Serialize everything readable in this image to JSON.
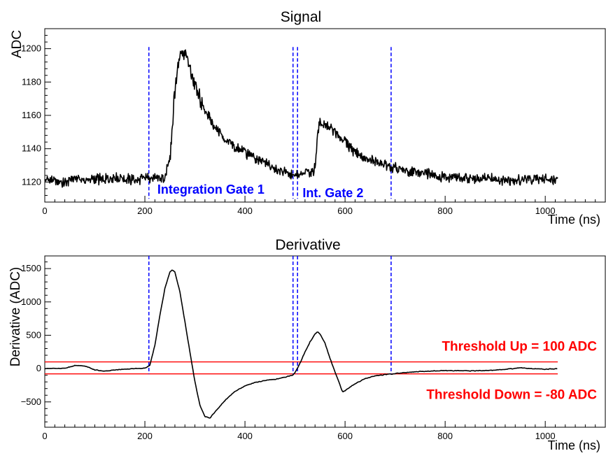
{
  "chart_data": [
    {
      "type": "line",
      "title": "Signal",
      "xlabel": "Time (ns)",
      "ylabel": "ADC",
      "xlim": [
        0,
        1120
      ],
      "ylim": [
        1108,
        1212
      ],
      "x_ticks": [
        0,
        200,
        400,
        600,
        800,
        1000
      ],
      "y_ticks": [
        1120,
        1140,
        1160,
        1180,
        1200
      ],
      "gate_lines_x": [
        208,
        496,
        505,
        692
      ],
      "annotations": [
        {
          "text": "Integration Gate 1",
          "x": 225,
          "y": 1113,
          "color": "#0000ff"
        },
        {
          "text": "Int. Gate 2",
          "x": 515,
          "y": 1111,
          "color": "#0000ff"
        }
      ],
      "series": [
        {
          "x": [
            0,
            20,
            40,
            60,
            80,
            100,
            120,
            140,
            160,
            180,
            200,
            220,
            240,
            250,
            260,
            270,
            280,
            290,
            300,
            320,
            340,
            360,
            380,
            400,
            420,
            440,
            460,
            480,
            500,
            520,
            540,
            545,
            550,
            560,
            580,
            600,
            620,
            640,
            660,
            680,
            700,
            720,
            740,
            760,
            780,
            800,
            850,
            900,
            950,
            1000,
            1025
          ],
          "y": [
            1122,
            1121,
            1120,
            1123,
            1121,
            1122,
            1121,
            1123,
            1122,
            1121,
            1122,
            1123,
            1122,
            1135,
            1175,
            1198,
            1198,
            1188,
            1178,
            1163,
            1153,
            1146,
            1141,
            1138,
            1134,
            1131,
            1128,
            1126,
            1124,
            1125,
            1128,
            1150,
            1156,
            1154,
            1150,
            1144,
            1138,
            1134,
            1132,
            1130,
            1128,
            1127,
            1126,
            1125,
            1124,
            1123,
            1122,
            1122,
            1121,
            1122,
            1122
          ]
        }
      ]
    },
    {
      "type": "line",
      "title": "Derivative",
      "xlabel": "Time (ns)",
      "ylabel": "Derivative (ADC)",
      "xlim": [
        0,
        1120
      ],
      "ylim": [
        -880,
        1690
      ],
      "x_ticks": [
        0,
        200,
        400,
        600,
        800,
        1000
      ],
      "y_ticks": [
        -500,
        0,
        500,
        1000,
        1500
      ],
      "gate_lines_x": [
        208,
        496,
        505,
        692
      ],
      "thresholds": [
        {
          "value": 100,
          "label": "Threshold Up = 100 ADC"
        },
        {
          "value": -80,
          "label": "Threshold Down = -80 ADC"
        }
      ],
      "series": [
        {
          "x": [
            0,
            40,
            60,
            80,
            100,
            120,
            140,
            160,
            180,
            200,
            210,
            220,
            230,
            240,
            250,
            255,
            260,
            270,
            280,
            290,
            300,
            310,
            320,
            330,
            340,
            360,
            380,
            400,
            420,
            440,
            460,
            480,
            495,
            500,
            510,
            520,
            530,
            540,
            545,
            550,
            560,
            570,
            580,
            590,
            595,
            600,
            620,
            640,
            660,
            680,
            700,
            720,
            760,
            800,
            850,
            900,
            950,
            1000,
            1025
          ],
          "y": [
            0,
            5,
            45,
            40,
            -20,
            -40,
            -20,
            -10,
            0,
            5,
            50,
            350,
            800,
            1200,
            1450,
            1480,
            1450,
            1150,
            700,
            250,
            -200,
            -550,
            -720,
            -740,
            -650,
            -480,
            -340,
            -260,
            -210,
            -180,
            -160,
            -130,
            -100,
            -60,
            80,
            250,
            400,
            520,
            550,
            520,
            380,
            150,
            -50,
            -250,
            -350,
            -330,
            -230,
            -150,
            -110,
            -90,
            -75,
            -60,
            -40,
            -30,
            -35,
            -25,
            10,
            -10,
            0
          ]
        }
      ]
    }
  ]
}
